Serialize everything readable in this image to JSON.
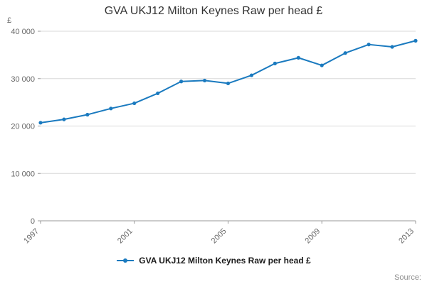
{
  "page": {
    "source_label": "Source:"
  },
  "chart_data": {
    "type": "line",
    "title": "GVA UKJ12 Milton Keynes Raw per head £",
    "ylabel": "£",
    "xlabel": "",
    "x": [
      1997,
      1998,
      1999,
      2000,
      2001,
      2002,
      2003,
      2004,
      2005,
      2006,
      2007,
      2008,
      2009,
      2010,
      2011,
      2012,
      2013
    ],
    "series": [
      {
        "name": "GVA UKJ12 Milton Keynes Raw per head £",
        "values": [
          20700,
          21400,
          22400,
          23700,
          24800,
          26900,
          29400,
          29600,
          29000,
          30700,
          33200,
          34400,
          32800,
          35400,
          37200,
          36700,
          38000
        ]
      }
    ],
    "ylim": [
      0,
      40000
    ],
    "yticks": [
      0,
      10000,
      20000,
      30000,
      40000
    ],
    "ytick_labels": [
      "0",
      "10 000",
      "20 000",
      "30 000",
      "40 000"
    ],
    "xticks": [
      1997,
      2001,
      2005,
      2009,
      2013
    ],
    "grid": true,
    "legend_position": "bottom",
    "line_color": "#1a7abf",
    "grid_color": "#d9d9d9",
    "axis_color": "#999999",
    "tick_text_color": "#666666"
  }
}
